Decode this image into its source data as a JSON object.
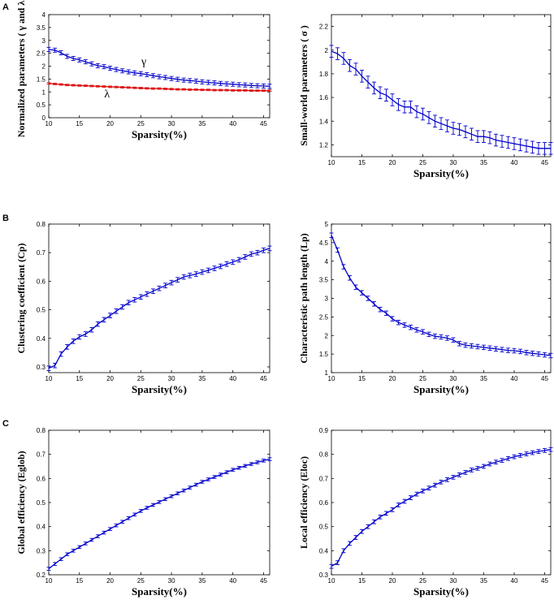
{
  "panel_labels": [
    "A",
    "B",
    "C"
  ],
  "chart_data": [
    {
      "type": "line",
      "xlabel": "Sparsity(%)",
      "ylabel": "Normalized parameters ( γ and λ )",
      "xlim": [
        10,
        46
      ],
      "ylim": [
        0,
        4
      ],
      "xticks": [
        10,
        15,
        20,
        25,
        30,
        35,
        40,
        45
      ],
      "yticks": [
        0,
        0.5,
        1,
        1.5,
        2,
        2.5,
        3,
        3.5,
        4
      ],
      "series": [
        {
          "name": "γ",
          "color": "#0000cc",
          "x": [
            10,
            11,
            12,
            13,
            14,
            15,
            16,
            17,
            18,
            19,
            20,
            21,
            22,
            23,
            24,
            25,
            26,
            27,
            28,
            29,
            30,
            31,
            32,
            33,
            34,
            35,
            36,
            37,
            38,
            39,
            40,
            41,
            42,
            43,
            44,
            45,
            46
          ],
          "values": [
            2.65,
            2.62,
            2.52,
            2.38,
            2.3,
            2.24,
            2.17,
            2.09,
            2.02,
            1.98,
            1.92,
            1.87,
            1.82,
            1.78,
            1.74,
            1.71,
            1.67,
            1.63,
            1.59,
            1.56,
            1.52,
            1.49,
            1.46,
            1.44,
            1.42,
            1.39,
            1.37,
            1.35,
            1.33,
            1.31,
            1.3,
            1.28,
            1.27,
            1.25,
            1.24,
            1.23,
            1.22
          ],
          "err": 0.08
        },
        {
          "name": "λ",
          "color": "#dd1111",
          "x": [
            10,
            11,
            12,
            13,
            14,
            15,
            16,
            17,
            18,
            19,
            20,
            21,
            22,
            23,
            24,
            25,
            26,
            27,
            28,
            29,
            30,
            31,
            32,
            33,
            34,
            35,
            36,
            37,
            38,
            39,
            40,
            41,
            42,
            43,
            44,
            45,
            46
          ],
          "values": [
            1.33,
            1.31,
            1.29,
            1.27,
            1.26,
            1.25,
            1.24,
            1.23,
            1.22,
            1.21,
            1.2,
            1.19,
            1.18,
            1.17,
            1.16,
            1.15,
            1.14,
            1.13,
            1.13,
            1.12,
            1.11,
            1.1,
            1.1,
            1.09,
            1.09,
            1.08,
            1.08,
            1.07,
            1.07,
            1.07,
            1.06,
            1.06,
            1.06,
            1.05,
            1.05,
            1.05,
            1.05
          ],
          "err": 0.03
        }
      ],
      "annotations": [
        {
          "text": "γ",
          "x": 25.5,
          "y": 2.05
        },
        {
          "text": "λ",
          "x": 19.5,
          "y": 0.78
        }
      ]
    },
    {
      "type": "line",
      "xlabel": "Sparsity(%)",
      "ylabel": "Small-world parameters ( σ )",
      "xlim": [
        10,
        46
      ],
      "ylim": [
        1.1,
        2.3
      ],
      "xticks": [
        10,
        15,
        20,
        25,
        30,
        35,
        40,
        45
      ],
      "yticks": [
        1.2,
        1.4,
        1.6,
        1.8,
        2,
        2.2
      ],
      "series": [
        {
          "name": "σ",
          "color": "#0000cc",
          "x": [
            10,
            11,
            12,
            13,
            14,
            15,
            16,
            17,
            18,
            19,
            20,
            21,
            22,
            23,
            24,
            25,
            26,
            27,
            28,
            29,
            30,
            31,
            32,
            33,
            34,
            35,
            36,
            37,
            38,
            39,
            40,
            41,
            42,
            43,
            44,
            45,
            46
          ],
          "values": [
            1.99,
            1.97,
            1.93,
            1.87,
            1.84,
            1.78,
            1.73,
            1.68,
            1.64,
            1.62,
            1.58,
            1.54,
            1.52,
            1.52,
            1.48,
            1.46,
            1.43,
            1.4,
            1.38,
            1.36,
            1.34,
            1.33,
            1.31,
            1.29,
            1.27,
            1.27,
            1.26,
            1.24,
            1.23,
            1.22,
            1.21,
            1.2,
            1.19,
            1.18,
            1.17,
            1.17,
            1.17
          ],
          "err": 0.05
        }
      ]
    },
    {
      "type": "line",
      "xlabel": "Sparsity(%)",
      "ylabel": "Clustering coefficient (Cp)",
      "xlim": [
        10,
        46
      ],
      "ylim": [
        0.28,
        0.8
      ],
      "xticks": [
        10,
        15,
        20,
        25,
        30,
        35,
        40,
        45
      ],
      "yticks": [
        0.3,
        0.4,
        0.5,
        0.6,
        0.7,
        0.8
      ],
      "series": [
        {
          "name": "Cp",
          "color": "#0000cc",
          "x": [
            10,
            11,
            12,
            13,
            14,
            15,
            16,
            17,
            18,
            19,
            20,
            21,
            22,
            23,
            24,
            25,
            26,
            27,
            28,
            29,
            30,
            31,
            32,
            33,
            34,
            35,
            36,
            37,
            38,
            39,
            40,
            41,
            42,
            43,
            44,
            45,
            46
          ],
          "values": [
            0.295,
            0.305,
            0.345,
            0.37,
            0.39,
            0.405,
            0.415,
            0.43,
            0.45,
            0.465,
            0.48,
            0.495,
            0.51,
            0.525,
            0.535,
            0.545,
            0.555,
            0.565,
            0.575,
            0.585,
            0.595,
            0.605,
            0.615,
            0.62,
            0.625,
            0.632,
            0.638,
            0.645,
            0.652,
            0.66,
            0.667,
            0.675,
            0.685,
            0.695,
            0.7,
            0.708,
            0.715
          ],
          "err": 0.008
        }
      ]
    },
    {
      "type": "line",
      "xlabel": "Sparsity(%)",
      "ylabel": "Characteristic path length (Lp)",
      "xlim": [
        10,
        46
      ],
      "ylim": [
        1,
        5
      ],
      "xticks": [
        10,
        15,
        20,
        25,
        30,
        35,
        40,
        45
      ],
      "yticks": [
        1,
        1.5,
        2,
        2.5,
        3,
        3.5,
        4,
        4.5,
        5
      ],
      "series": [
        {
          "name": "Lp",
          "color": "#0000cc",
          "x": [
            10,
            11,
            12,
            13,
            14,
            15,
            16,
            17,
            18,
            19,
            20,
            21,
            22,
            23,
            24,
            25,
            26,
            27,
            28,
            29,
            30,
            31,
            32,
            33,
            34,
            35,
            36,
            37,
            38,
            39,
            40,
            41,
            42,
            43,
            44,
            45,
            46
          ],
          "values": [
            4.7,
            4.3,
            3.85,
            3.55,
            3.3,
            3.15,
            3.0,
            2.85,
            2.7,
            2.6,
            2.45,
            2.35,
            2.28,
            2.22,
            2.15,
            2.1,
            2.03,
            1.98,
            1.96,
            1.93,
            1.88,
            1.78,
            1.74,
            1.72,
            1.7,
            1.68,
            1.66,
            1.64,
            1.62,
            1.6,
            1.59,
            1.57,
            1.54,
            1.52,
            1.5,
            1.48,
            1.46
          ],
          "err": 0.06
        }
      ]
    },
    {
      "type": "line",
      "xlabel": "Sparsity(%)",
      "ylabel": "Global efficiency (Eglob)",
      "xlim": [
        10,
        46
      ],
      "ylim": [
        0.2,
        0.8
      ],
      "xticks": [
        10,
        15,
        20,
        25,
        30,
        35,
        40,
        45
      ],
      "yticks": [
        0.2,
        0.3,
        0.4,
        0.5,
        0.6,
        0.7,
        0.8
      ],
      "series": [
        {
          "name": "Eglob",
          "color": "#0000cc",
          "x": [
            10,
            11,
            12,
            13,
            14,
            15,
            16,
            17,
            18,
            19,
            20,
            21,
            22,
            23,
            24,
            25,
            26,
            27,
            28,
            29,
            30,
            31,
            32,
            33,
            34,
            35,
            36,
            37,
            38,
            39,
            40,
            41,
            42,
            43,
            44,
            45,
            46
          ],
          "values": [
            0.225,
            0.245,
            0.265,
            0.285,
            0.3,
            0.315,
            0.33,
            0.345,
            0.36,
            0.375,
            0.39,
            0.405,
            0.42,
            0.435,
            0.45,
            0.465,
            0.478,
            0.49,
            0.502,
            0.514,
            0.526,
            0.538,
            0.55,
            0.562,
            0.574,
            0.586,
            0.596,
            0.606,
            0.616,
            0.626,
            0.636,
            0.644,
            0.652,
            0.66,
            0.667,
            0.674,
            0.68
          ],
          "err": 0.006
        }
      ]
    },
    {
      "type": "line",
      "xlabel": "Sparsity(%)",
      "ylabel": "Local efficiency (Eloc)",
      "xlim": [
        10,
        46
      ],
      "ylim": [
        0.3,
        0.9
      ],
      "xticks": [
        10,
        15,
        20,
        25,
        30,
        35,
        40,
        45
      ],
      "yticks": [
        0.3,
        0.4,
        0.5,
        0.6,
        0.7,
        0.8,
        0.9
      ],
      "series": [
        {
          "name": "Eloc",
          "color": "#0000cc",
          "x": [
            10,
            11,
            12,
            13,
            14,
            15,
            16,
            17,
            18,
            19,
            20,
            21,
            22,
            23,
            24,
            25,
            26,
            27,
            28,
            29,
            30,
            31,
            32,
            33,
            34,
            35,
            36,
            37,
            38,
            39,
            40,
            41,
            42,
            43,
            44,
            45,
            46
          ],
          "values": [
            0.335,
            0.35,
            0.4,
            0.43,
            0.455,
            0.48,
            0.5,
            0.52,
            0.54,
            0.555,
            0.57,
            0.59,
            0.605,
            0.62,
            0.635,
            0.648,
            0.66,
            0.672,
            0.685,
            0.695,
            0.705,
            0.715,
            0.725,
            0.735,
            0.742,
            0.75,
            0.76,
            0.768,
            0.775,
            0.783,
            0.79,
            0.796,
            0.802,
            0.807,
            0.812,
            0.816,
            0.82
          ],
          "err": 0.008
        }
      ]
    }
  ]
}
